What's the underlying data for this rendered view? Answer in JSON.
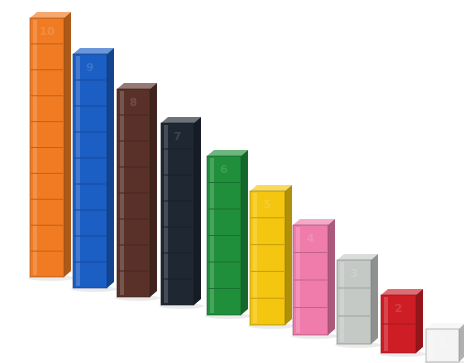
{
  "image": {
    "subject": "number rods",
    "background_color": "#ffffff"
  },
  "rods": [
    {
      "name": "rod-10",
      "label": "10",
      "color": "#f07b22"
    },
    {
      "name": "rod-9",
      "label": "9",
      "color": "#1b5ec4"
    },
    {
      "name": "rod-8",
      "label": "8",
      "color": "#5a3129"
    },
    {
      "name": "rod-7",
      "label": "7",
      "color": "#1f2733"
    },
    {
      "name": "rod-6",
      "label": "6",
      "color": "#1f8f3b"
    },
    {
      "name": "rod-5",
      "label": "5",
      "color": "#f4c60f"
    },
    {
      "name": "rod-4",
      "label": "4",
      "color": "#ef7cab"
    },
    {
      "name": "rod-3",
      "label": "3",
      "color": "#c5c9c6"
    },
    {
      "name": "rod-2",
      "label": "2",
      "color": "#cf1d26"
    },
    {
      "name": "rod-1",
      "label": "1",
      "color": "#f4f4f4"
    }
  ]
}
